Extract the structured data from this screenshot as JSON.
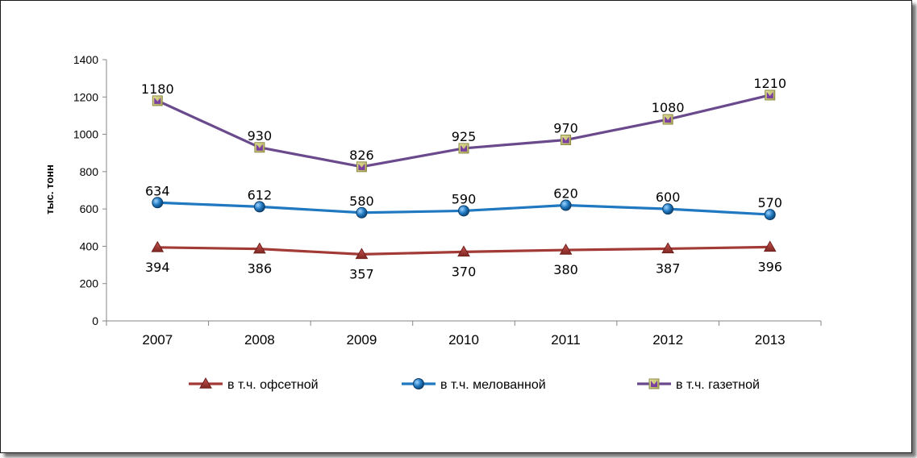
{
  "chart_data": {
    "type": "line",
    "title": "",
    "xlabel": "",
    "ylabel": "тыс. тонн",
    "ylim": [
      0,
      1400
    ],
    "yticks": [
      0,
      200,
      400,
      600,
      800,
      1000,
      1200,
      1400
    ],
    "grid": false,
    "legend_position": "bottom",
    "categories": [
      "2007",
      "2008",
      "2009",
      "2010",
      "2011",
      "2012",
      "2013"
    ],
    "series": [
      {
        "name": "в т.ч. офсетной",
        "values": [
          394,
          386,
          357,
          370,
          380,
          387,
          396
        ],
        "color": "#a23a36",
        "marker": "triangle",
        "label_position": "below"
      },
      {
        "name": "в т.ч. мелованной",
        "values": [
          634,
          612,
          580,
          590,
          620,
          600,
          570
        ],
        "color": "#1f78c0",
        "marker": "circle",
        "label_position": "above"
      },
      {
        "name": "в т.ч. газетной",
        "values": [
          1180,
          930,
          826,
          925,
          970,
          1080,
          1210
        ],
        "color": "#6a4a8c",
        "marker": "square",
        "label_position": "above"
      }
    ]
  }
}
